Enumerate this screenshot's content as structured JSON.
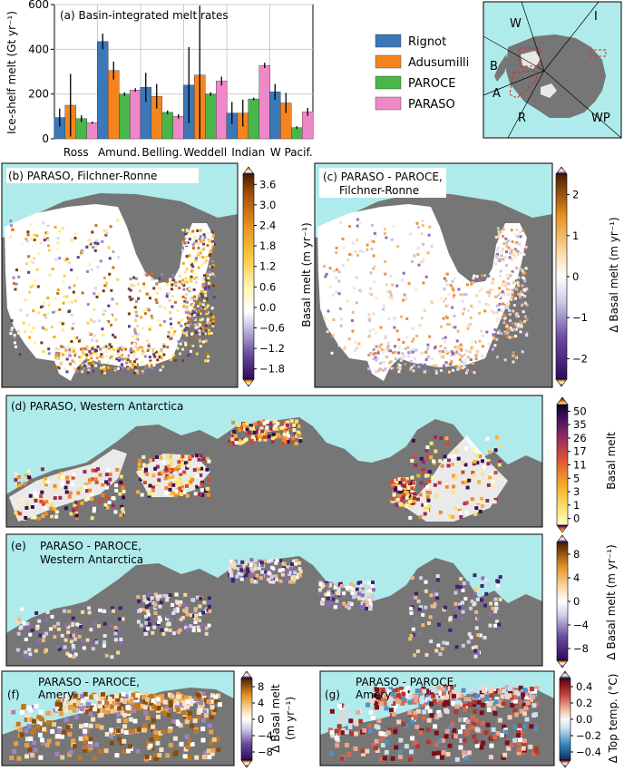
{
  "chart_data": [
    {
      "type": "bar",
      "panel": "a",
      "title": "(a) Basin-integrated melt rates",
      "ylabel": "Ice-shelf melt (Gt yr⁻¹)",
      "ylim": [
        0,
        600
      ],
      "yticks": [
        0,
        200,
        400,
        600
      ],
      "grid": true,
      "categories": [
        "Ross",
        "Amund.",
        "Belling.",
        "Weddell",
        "Indian",
        "W Pacif."
      ],
      "series": [
        {
          "name": "Rignot",
          "color": "#3a78b8",
          "values": [
            95,
            435,
            230,
            240,
            115,
            210
          ],
          "err": [
            40,
            35,
            65,
            170,
            50,
            35
          ]
        },
        {
          "name": "Adusumilli",
          "color": "#f5841f",
          "values": [
            150,
            305,
            190,
            285,
            115,
            160
          ],
          "err": [
            140,
            40,
            55,
            310,
            60,
            45
          ]
        },
        {
          "name": "PAROCE",
          "color": "#49b64a",
          "values": [
            90,
            200,
            118,
            200,
            178,
            50
          ],
          "err": [
            15,
            8,
            8,
            8,
            6,
            6
          ]
        },
        {
          "name": "PARASO",
          "color": "#ef88c8",
          "values": [
            72,
            218,
            100,
            258,
            328,
            120
          ],
          "err": [
            5,
            8,
            10,
            20,
            12,
            18
          ]
        }
      ],
      "legend_position": "right"
    },
    {
      "type": "heatmap",
      "panel": "b",
      "title": "(b) PARASO, Filchner-Ronne",
      "colorbar_label": "Basal melt (m yr⁻¹)",
      "colorbar_ticks": [
        "3.6",
        "3.0",
        "2.4",
        "1.8",
        "1.2",
        "0.6",
        "0.0",
        "−0.6",
        "−1.2",
        "−1.8"
      ],
      "vmin": -2.1,
      "vmax": 4.2,
      "cmap": "PuOr-yellow"
    },
    {
      "type": "heatmap",
      "panel": "c",
      "title_lines": [
        "(c) PARASO - PAROCE,",
        "Filchner-Ronne"
      ],
      "colorbar_label": "Δ Basal melt (m yr⁻¹)",
      "colorbar_ticks": [
        "2",
        "1",
        "0",
        "−1",
        "−2"
      ],
      "vmin": -2.5,
      "vmax": 2.5,
      "cmap": "PuOr"
    },
    {
      "type": "heatmap",
      "panel": "d",
      "title": "(d) PARASO, Western Antarctica",
      "colorbar_label": "Basal melt",
      "colorbar_ticks": [
        "50",
        "35",
        "26",
        "17",
        "11",
        "5",
        "3",
        "1",
        "0"
      ],
      "vmin": 0,
      "vmax": 55,
      "cmap": "inferno-r"
    },
    {
      "type": "heatmap",
      "panel": "e",
      "title_lines": [
        "PARASO - PAROCE,",
        "Western Antarctica"
      ],
      "colorbar_label": "Δ Basal melt (m yr⁻¹)",
      "colorbar_ticks": [
        "8",
        "4",
        "0",
        "−4",
        "−8"
      ],
      "vmin": -10,
      "vmax": 10,
      "cmap": "PuOr"
    },
    {
      "type": "heatmap",
      "panel": "f",
      "title_lines": [
        "PARASO - PAROCE,",
        "Amery"
      ],
      "label": "(f)",
      "colorbar_label_lines": [
        "Δ Basal melt",
        "(m yr⁻¹)"
      ],
      "colorbar_ticks": [
        "8",
        "4",
        "0",
        "−4",
        "−8"
      ],
      "vmin": -10,
      "vmax": 10,
      "cmap": "PuOr"
    },
    {
      "type": "heatmap",
      "panel": "g",
      "title_lines": [
        "PARASO - PAROCE,",
        "Amery"
      ],
      "label": "(g)",
      "colorbar_label": "Δ Top temp. (°C)",
      "colorbar_ticks": [
        "0.4",
        "0.2",
        "0.0",
        "−0.2",
        "−0.4"
      ],
      "vmin": -0.5,
      "vmax": 0.5,
      "cmap": "RdBu-r"
    }
  ],
  "inset_map": {
    "labels": [
      "W",
      "I",
      "B",
      "A",
      "R",
      "WP"
    ]
  },
  "colors": {
    "ocean": "#b0ebeb",
    "land": "#767676",
    "frame": "#000000"
  }
}
